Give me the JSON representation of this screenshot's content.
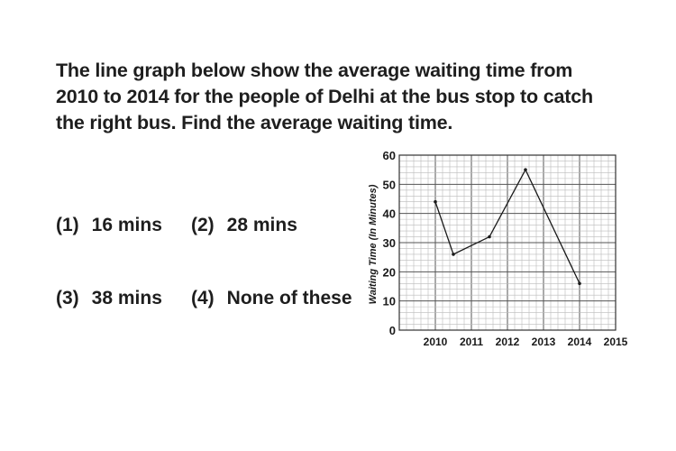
{
  "question": {
    "line1": "The line graph below show the average waiting time from",
    "line2": "2010 to 2014 for the people of Delhi at the bus stop to catch",
    "line3": "the right bus. Find the average waiting time."
  },
  "options": [
    {
      "num": "(1)",
      "text": "16 mins"
    },
    {
      "num": "(2)",
      "text": "28 mins"
    },
    {
      "num": "(3)",
      "text": "38 mins"
    },
    {
      "num": "(4)",
      "text": "None of these"
    }
  ],
  "chart_data": {
    "type": "line",
    "ylabel": "Waiting Time (In Minutes)",
    "xlabel": "",
    "title": "",
    "x_ticks": [
      "2010",
      "2011",
      "2012",
      "2013",
      "2014",
      "2015"
    ],
    "y_ticks": [
      0,
      10,
      20,
      30,
      40,
      50,
      60
    ],
    "xlim": [
      2009,
      2015
    ],
    "ylim": [
      0,
      60
    ],
    "grid": true,
    "series": [
      {
        "x": [
          2010,
          2010.5,
          2011.5,
          2012.5,
          2014
        ],
        "y": [
          44,
          26,
          32,
          55,
          16
        ]
      }
    ],
    "colors": {
      "line": "#1a1a1a",
      "grid_major": "#555555",
      "grid_minor": "#bbbbbb"
    }
  }
}
